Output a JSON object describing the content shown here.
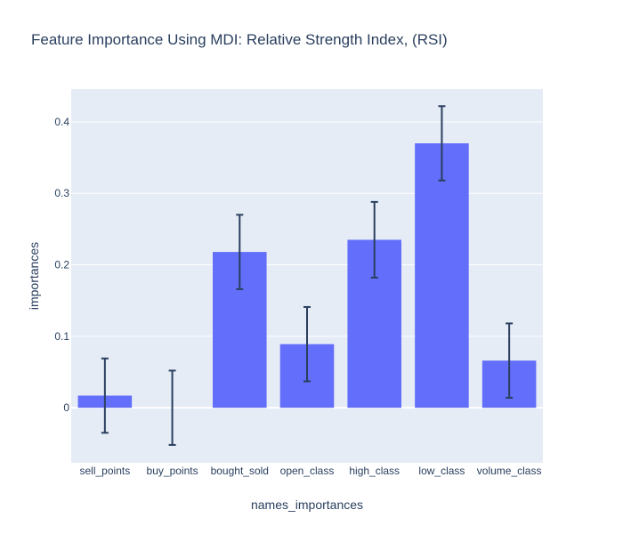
{
  "chart_data": {
    "type": "bar",
    "title": "Feature Importance Using MDI: Relative Strength Index, (RSI)",
    "xlabel": "names_importances",
    "ylabel": "importances",
    "categories": [
      "sell_points",
      "buy_points",
      "bought_sold",
      "open_class",
      "high_class",
      "low_class",
      "volume_class"
    ],
    "values": [
      0.017,
      0.0,
      0.218,
      0.089,
      0.235,
      0.37,
      0.066
    ],
    "error": [
      0.052,
      0.052,
      0.052,
      0.052,
      0.053,
      0.052,
      0.052
    ],
    "ylim": [
      -0.077,
      0.446
    ],
    "yticks": [
      0,
      0.1,
      0.2,
      0.3,
      0.4
    ],
    "ytick_labels": [
      "0",
      "0.1",
      "0.2",
      "0.3",
      "0.4"
    ],
    "grid": true,
    "colors": {
      "bar": "#636efa",
      "plot_bg": "#e5ecf6",
      "error_bar": "#2a3f5f",
      "grid": "#ffffff",
      "text": "#2a3f5f"
    }
  }
}
